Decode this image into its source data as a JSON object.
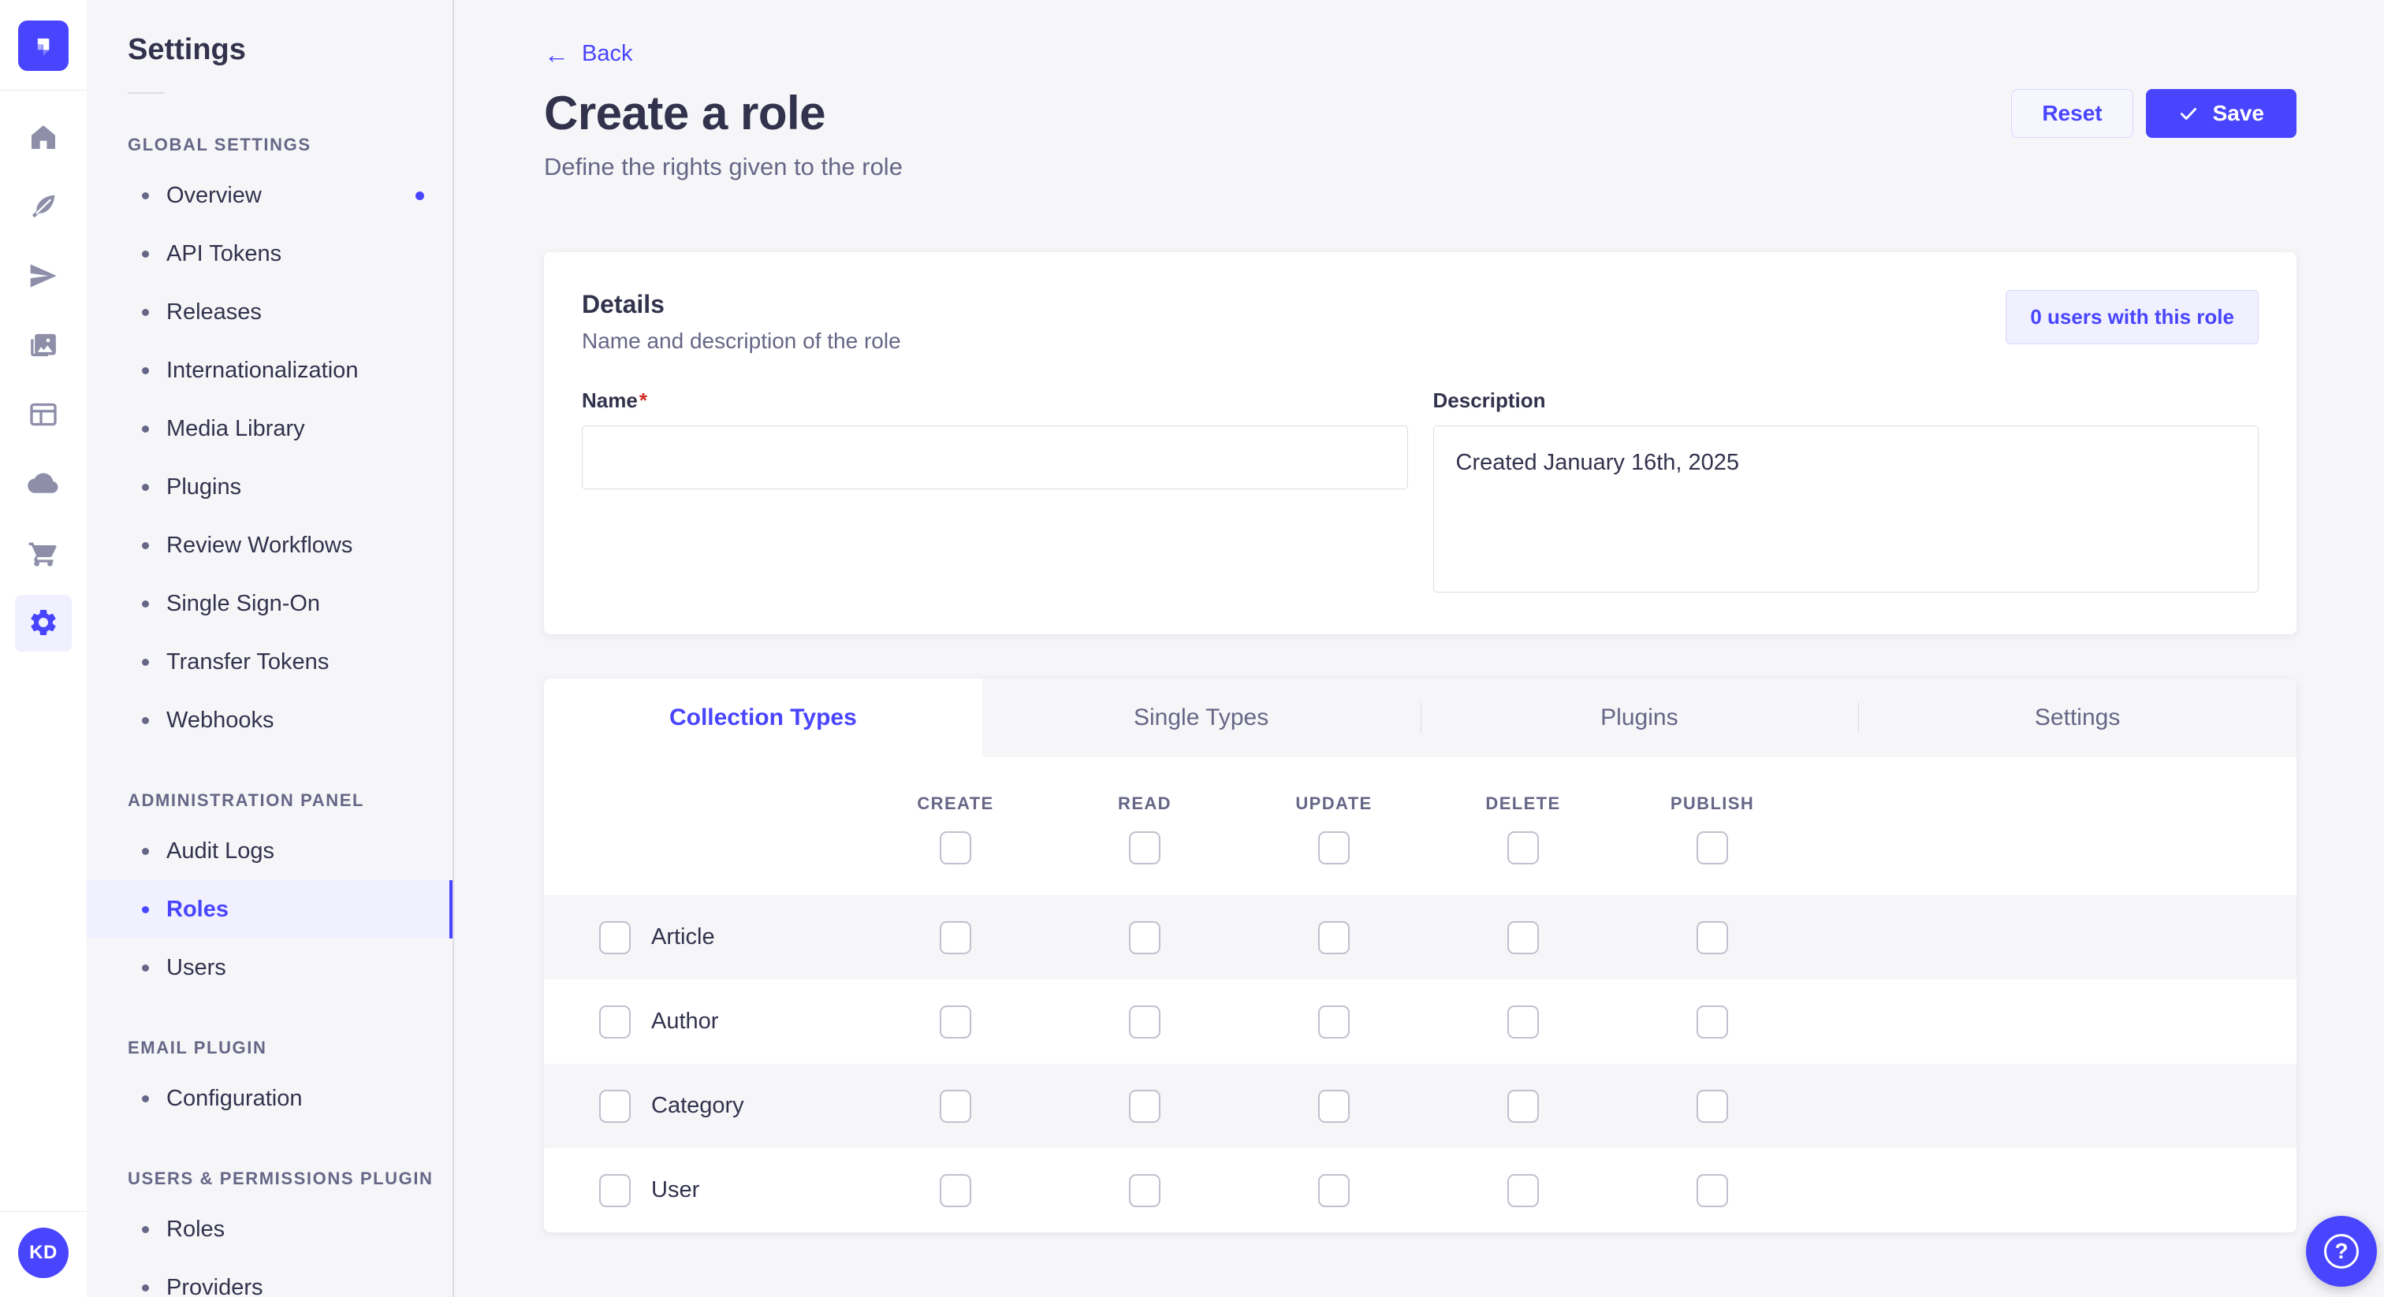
{
  "colors": {
    "primary": "#4945ff",
    "primary_bg_light": "#f0f0ff",
    "primary_border_light": "#d9d8ff",
    "neutral_bg": "#f6f6f9",
    "border": "#dcdce4",
    "checkbox_border": "#c0c0cf",
    "text_dark": "#32324d",
    "text_gray": "#666687",
    "required_red": "#d02b20"
  },
  "nav_rail": {
    "logo_icon": "strapi-logo-icon",
    "icons": [
      {
        "name": "home-icon",
        "active": false
      },
      {
        "name": "feather-icon",
        "active": false
      },
      {
        "name": "paper-plane-icon",
        "active": false
      },
      {
        "name": "media-library-icon",
        "active": false
      },
      {
        "name": "layout-panel-icon",
        "active": false
      },
      {
        "name": "cloud-icon",
        "active": false
      },
      {
        "name": "cart-icon",
        "active": false
      },
      {
        "name": "settings-gear-icon",
        "active": true
      }
    ],
    "avatar_initials": "KD"
  },
  "sidebar": {
    "title": "Settings",
    "sections": [
      {
        "label": "GLOBAL SETTINGS",
        "items": [
          {
            "label": "Overview",
            "active": false,
            "notification_dot": true
          },
          {
            "label": "API Tokens",
            "active": false,
            "notification_dot": false
          },
          {
            "label": "Releases",
            "active": false,
            "notification_dot": false
          },
          {
            "label": "Internationalization",
            "active": false,
            "notification_dot": false
          },
          {
            "label": "Media Library",
            "active": false,
            "notification_dot": false
          },
          {
            "label": "Plugins",
            "active": false,
            "notification_dot": false
          },
          {
            "label": "Review Workflows",
            "active": false,
            "notification_dot": false
          },
          {
            "label": "Single Sign-On",
            "active": false,
            "notification_dot": false
          },
          {
            "label": "Transfer Tokens",
            "active": false,
            "notification_dot": false
          },
          {
            "label": "Webhooks",
            "active": false,
            "notification_dot": false
          }
        ]
      },
      {
        "label": "ADMINISTRATION PANEL",
        "items": [
          {
            "label": "Audit Logs",
            "active": false,
            "notification_dot": false
          },
          {
            "label": "Roles",
            "active": true,
            "notification_dot": false
          },
          {
            "label": "Users",
            "active": false,
            "notification_dot": false
          }
        ]
      },
      {
        "label": "EMAIL PLUGIN",
        "items": [
          {
            "label": "Configuration",
            "active": false,
            "notification_dot": false
          }
        ]
      },
      {
        "label": "USERS & PERMISSIONS PLUGIN",
        "items": [
          {
            "label": "Roles",
            "active": false,
            "notification_dot": false
          },
          {
            "label": "Providers",
            "active": false,
            "notification_dot": false
          }
        ]
      }
    ]
  },
  "header": {
    "back_label": "Back",
    "back_arrow": "←",
    "title": "Create a role",
    "subtitle": "Define the rights given to the role",
    "reset_label": "Reset",
    "save_label": "Save"
  },
  "details": {
    "title": "Details",
    "subtitle": "Name and description of the role",
    "users_button_label": "0 users with this role",
    "name_label": "Name",
    "name_required_mark": "*",
    "name_value": "",
    "description_label": "Description",
    "description_value": "Created January 16th, 2025"
  },
  "permissions": {
    "tabs": [
      {
        "label": "Collection Types",
        "active": true
      },
      {
        "label": "Single Types",
        "active": false
      },
      {
        "label": "Plugins",
        "active": false
      },
      {
        "label": "Settings",
        "active": false
      }
    ],
    "columns": [
      "CREATE",
      "READ",
      "UPDATE",
      "DELETE",
      "PUBLISH"
    ],
    "header_checkboxes": [
      false,
      false,
      false,
      false,
      false
    ],
    "rows": [
      {
        "label": "Article",
        "row_checked": false,
        "cells": [
          false,
          false,
          false,
          false,
          false
        ]
      },
      {
        "label": "Author",
        "row_checked": false,
        "cells": [
          false,
          false,
          false,
          false,
          false
        ]
      },
      {
        "label": "Category",
        "row_checked": false,
        "cells": [
          false,
          false,
          false,
          false,
          false
        ]
      },
      {
        "label": "User",
        "row_checked": false,
        "cells": [
          false,
          false,
          false,
          false,
          false
        ]
      }
    ]
  },
  "fab": {
    "icon": "help-icon",
    "glyph": "?"
  }
}
